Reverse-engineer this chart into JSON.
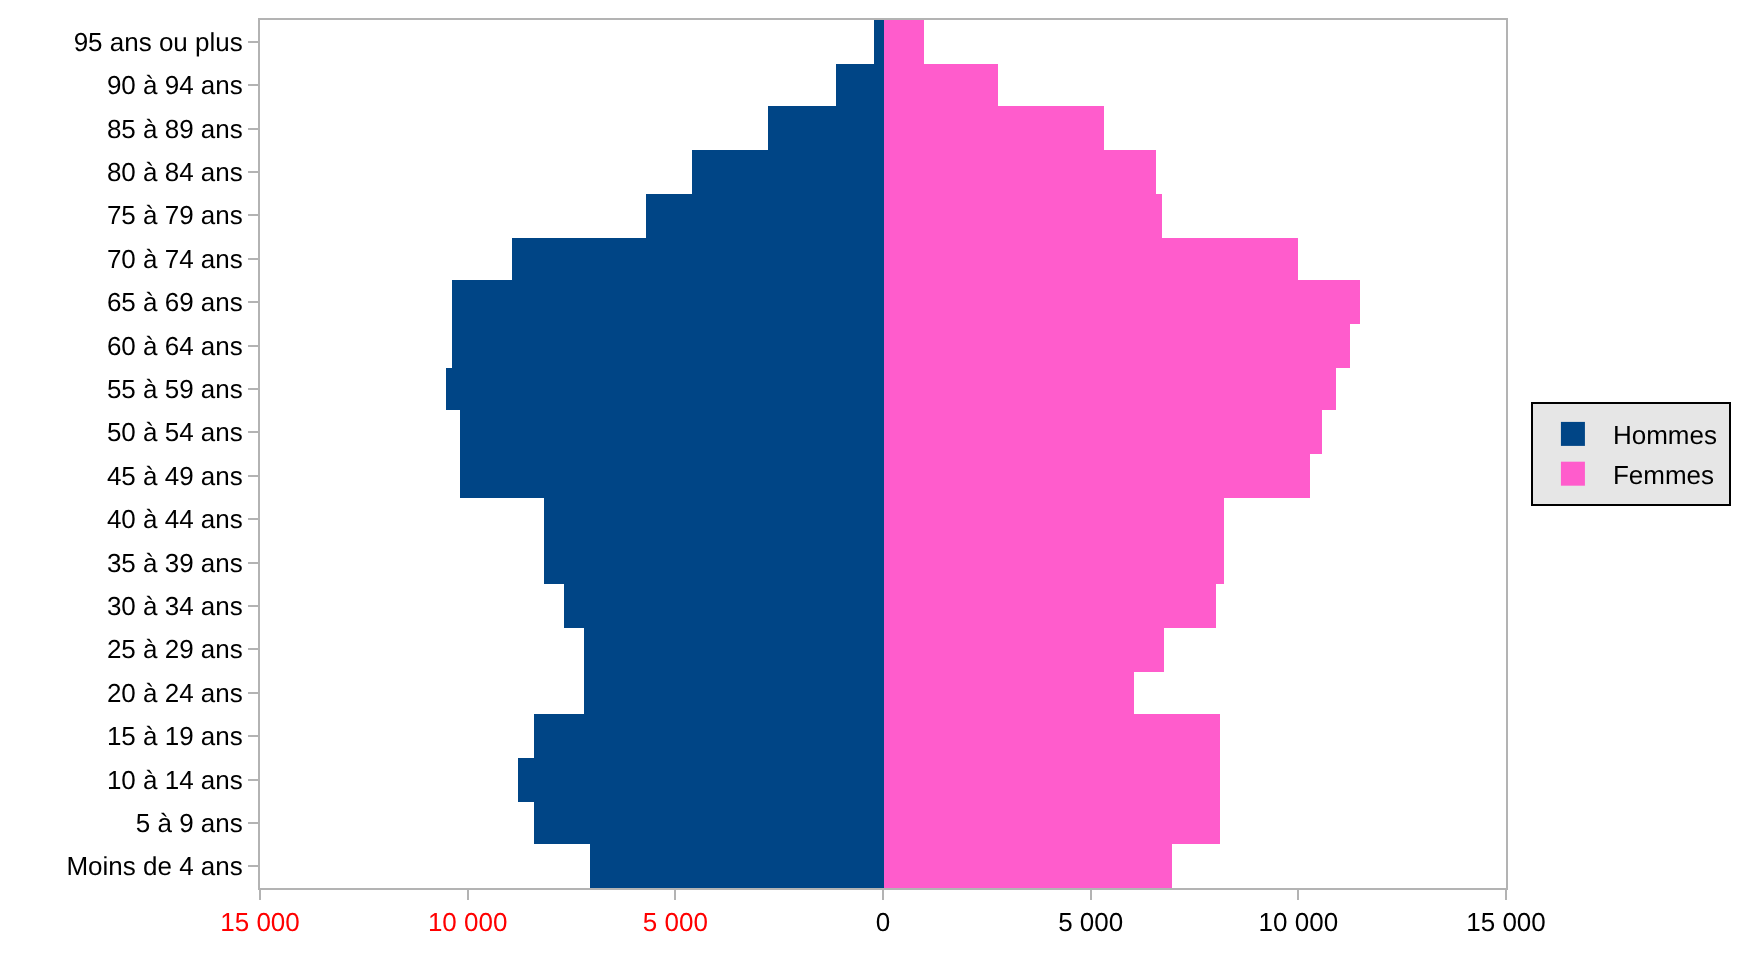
{
  "chart_data": {
    "type": "bar",
    "orientation": "horizontal",
    "categories": [
      "95 ans ou plus",
      "90 à 94 ans",
      "85 à 89 ans",
      "80 à 84 ans",
      "75 à 79 ans",
      "70 à 74 ans",
      "65 à 69 ans",
      "60 à 64 ans",
      "55 à 59 ans",
      "50 à 54 ans",
      "45 à 49 ans",
      "40 à 44 ans",
      "35 à 39 ans",
      "30 à 34 ans",
      "25 à 29 ans",
      "20 à 24 ans",
      "15 à 19 ans",
      "10 à 14 ans",
      "5 à 9 ans",
      "Moins de 4 ans"
    ],
    "series": [
      {
        "name": "Hommes",
        "color": "#004586",
        "values": [
          -200,
          -1150,
          -2750,
          -4600,
          -5700,
          -8950,
          -10400,
          -10400,
          -10500,
          -10200,
          -10200,
          -8150,
          -8150,
          -7700,
          -7200,
          -7200,
          -8400,
          -8800,
          -8400,
          -7050
        ]
      },
      {
        "name": "Femmes",
        "color": "#ff5ccc",
        "values": [
          1000,
          2750,
          5300,
          6550,
          6700,
          10000,
          11500,
          11250,
          10900,
          10550,
          10300,
          8200,
          8200,
          8000,
          6750,
          6050,
          8100,
          8100,
          8100,
          6950
        ]
      }
    ],
    "xlim": [
      -15000,
      15000
    ],
    "xticks": [
      {
        "value": -15000,
        "label": "15 000"
      },
      {
        "value": -10000,
        "label": "10 000"
      },
      {
        "value": -5000,
        "label": "5 000"
      },
      0,
      {
        "value": 5000,
        "label": "5 000"
      },
      {
        "value": 10000,
        "label": "10 000"
      },
      {
        "value": 15000,
        "label": "15 000"
      }
    ],
    "legend": "right",
    "stacked": true
  }
}
